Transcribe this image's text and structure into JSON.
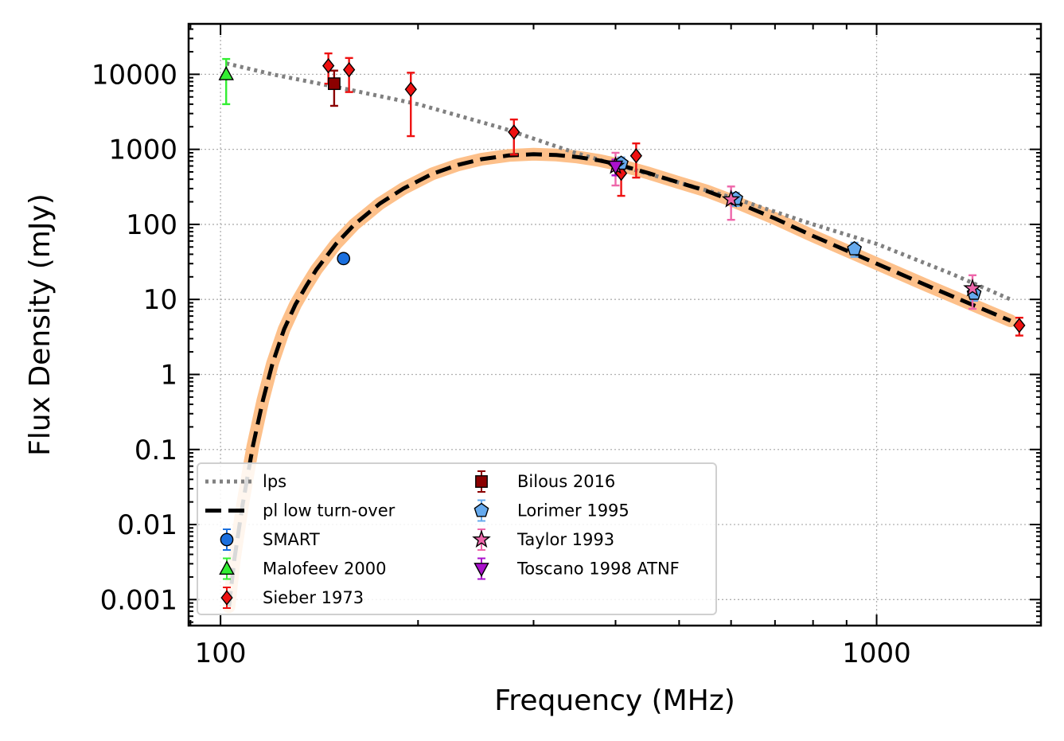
{
  "chart_data": {
    "type": "scatter",
    "xlabel": "Frequency (MHz)",
    "ylabel": "Flux Density (mJy)",
    "xscale": "log",
    "yscale": "log",
    "xlim": [
      89.4,
      1780
    ],
    "ylim": [
      0.00045,
      47000
    ],
    "x_ticks": [
      100,
      1000
    ],
    "x_tick_labels": [
      "100",
      "1000"
    ],
    "y_ticks": [
      0.001,
      0.01,
      0.1,
      1,
      10,
      100,
      1000,
      10000
    ],
    "y_tick_labels": [
      "0.001",
      "0.01",
      "0.1",
      "1",
      "10",
      "100",
      "1000",
      "10000"
    ],
    "grid": true,
    "legend_position": "bottom-left",
    "lines": [
      {
        "name": "lps",
        "style": "dotted",
        "color": "#808080",
        "x": [
          102,
          120,
          150,
          200,
          270,
          350,
          400,
          500,
          600,
          800,
          1000,
          1300,
          1600
        ],
        "y": [
          14000,
          10000,
          6800,
          4000,
          1900,
          880,
          630,
          360,
          230,
          100,
          55,
          22,
          10
        ]
      },
      {
        "name": "pl low turn-over",
        "style": "dashed",
        "color": "#000000",
        "band_color": "#fdc08a",
        "x": [
          103,
          105,
          108,
          112,
          116,
          120,
          125,
          130,
          135,
          140,
          150,
          160,
          175,
          190,
          210,
          230,
          250,
          275,
          300,
          325,
          350,
          375,
          400,
          450,
          500,
          550,
          600,
          700,
          800,
          1000,
          1200,
          1400,
          1600
        ],
        "y": [
          0.0008,
          0.0035,
          0.018,
          0.11,
          0.45,
          1.4,
          4.0,
          8.5,
          15,
          25,
          55,
          100,
          190,
          300,
          470,
          620,
          740,
          830,
          860,
          840,
          790,
          720,
          640,
          480,
          360,
          280,
          210,
          120,
          70,
          30,
          15,
          8.5,
          5.2
        ]
      }
    ],
    "series": [
      {
        "name": "SMART",
        "marker": "circle",
        "color": "#1a6fde",
        "errcolor": "#1a6fde",
        "points": [
          {
            "x": 154,
            "y": 35,
            "lo": 35,
            "hi": 35
          }
        ]
      },
      {
        "name": "Malofeev 2000",
        "marker": "triangle-up",
        "color": "#33ee33",
        "errcolor": "#33ee33",
        "points": [
          {
            "x": 102,
            "y": 10000,
            "lo": 4000,
            "hi": 16000
          }
        ]
      },
      {
        "name": "Sieber 1973",
        "marker": "diamond",
        "color": "#ee1111",
        "errcolor": "#ee1111",
        "points": [
          {
            "x": 146,
            "y": 13000,
            "lo": 7500,
            "hi": 19000
          },
          {
            "x": 157,
            "y": 11500,
            "lo": 5800,
            "hi": 16500
          },
          {
            "x": 195,
            "y": 6300,
            "lo": 1500,
            "hi": 10500
          },
          {
            "x": 280,
            "y": 1700,
            "lo": 850,
            "hi": 2500
          },
          {
            "x": 408,
            "y": 480,
            "lo": 240,
            "hi": 720
          },
          {
            "x": 430,
            "y": 820,
            "lo": 420,
            "hi": 1200
          },
          {
            "x": 1650,
            "y": 4.5,
            "lo": 3.3,
            "hi": 5.7
          }
        ]
      },
      {
        "name": "Bilous 2016",
        "marker": "square",
        "color": "#8b0000",
        "errcolor": "#8b0000",
        "points": [
          {
            "x": 149,
            "y": 7500,
            "lo": 3800,
            "hi": 11200
          }
        ]
      },
      {
        "name": "Lorimer 1995",
        "marker": "pentagon",
        "color": "#66aaee",
        "errcolor": "#66aaee",
        "points": [
          {
            "x": 408,
            "y": 650,
            "lo": 520,
            "hi": 780
          },
          {
            "x": 610,
            "y": 220,
            "lo": 176,
            "hi": 264
          },
          {
            "x": 925,
            "y": 47,
            "lo": 37,
            "hi": 57
          },
          {
            "x": 1408,
            "y": 12,
            "lo": 9.6,
            "hi": 14.4
          }
        ]
      },
      {
        "name": "Taylor 1993",
        "marker": "star",
        "color": "#ee66aa",
        "errcolor": "#ee66aa",
        "points": [
          {
            "x": 400,
            "y": 600,
            "lo": 330,
            "hi": 900
          },
          {
            "x": 600,
            "y": 215,
            "lo": 115,
            "hi": 320
          },
          {
            "x": 1400,
            "y": 14,
            "lo": 7.5,
            "hi": 21
          }
        ]
      },
      {
        "name": "Toscano 1998 ATNF",
        "marker": "triangle-down",
        "color": "#aa11cc",
        "errcolor": "#aa11cc",
        "points": [
          {
            "x": 400,
            "y": 590,
            "lo": 450,
            "hi": 730
          }
        ]
      }
    ]
  }
}
